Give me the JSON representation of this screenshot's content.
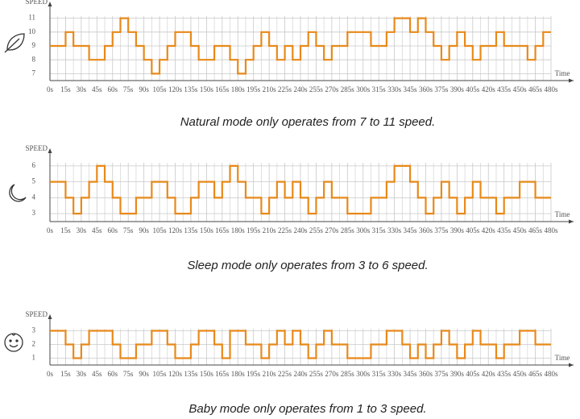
{
  "chart_data": [
    {
      "type": "step",
      "title": "Natural mode only operates from 7 to 11 speed.",
      "y_label": "SPEED",
      "x_label": "Time",
      "color": "#e8891a",
      "grid": true,
      "xlim": [
        0,
        480
      ],
      "ylim": [
        6.5,
        11.5
      ],
      "yticks": [
        7,
        8,
        9,
        10,
        11
      ],
      "xticks": [
        {
          "value": 0,
          "label": "0s"
        },
        {
          "value": 15,
          "label": "15s"
        },
        {
          "value": 30,
          "label": "30s"
        },
        {
          "value": 45,
          "label": "45s"
        },
        {
          "value": 60,
          "label": "60s"
        },
        {
          "value": 75,
          "label": "75s"
        },
        {
          "value": 90,
          "label": "90s"
        },
        {
          "value": 105,
          "label": "105s"
        },
        {
          "value": 120,
          "label": "120s"
        },
        {
          "value": 135,
          "label": "135s"
        },
        {
          "value": 150,
          "label": "150s"
        },
        {
          "value": 165,
          "label": "165s"
        },
        {
          "value": 180,
          "label": "180s"
        },
        {
          "value": 195,
          "label": "195s"
        },
        {
          "value": 210,
          "label": "210s"
        },
        {
          "value": 225,
          "label": "225s"
        },
        {
          "value": 240,
          "label": "240s"
        },
        {
          "value": 255,
          "label": "255s"
        },
        {
          "value": 270,
          "label": "270s"
        },
        {
          "value": 285,
          "label": "285s"
        },
        {
          "value": 300,
          "label": "300s"
        },
        {
          "value": 315,
          "label": "315s"
        },
        {
          "value": 330,
          "label": "330s"
        },
        {
          "value": 345,
          "label": "345s"
        },
        {
          "value": 360,
          "label": "360s"
        },
        {
          "value": 375,
          "label": "375s"
        },
        {
          "value": 390,
          "label": "390s"
        },
        {
          "value": 405,
          "label": "405s"
        },
        {
          "value": 420,
          "label": "420s"
        },
        {
          "value": 435,
          "label": "435s"
        },
        {
          "value": 450,
          "label": "450s"
        },
        {
          "value": 465,
          "label": "465s"
        },
        {
          "value": 480,
          "label": "480s"
        }
      ],
      "x": [
        0,
        15,
        22.5,
        37.5,
        52.5,
        60,
        67.5,
        75,
        82.5,
        90,
        97.5,
        105,
        112.5,
        120,
        135,
        142.5,
        157.5,
        172.5,
        180,
        187.5,
        195,
        202.5,
        210,
        217.5,
        225,
        232.5,
        240,
        247.5,
        255,
        262.5,
        270,
        285,
        307.5,
        322.5,
        330,
        345,
        352.5,
        360,
        367.5,
        375,
        382.5,
        390,
        397.5,
        405,
        412.5,
        427.5,
        435,
        457.5,
        465,
        472.5
      ],
      "values": [
        9,
        10,
        9,
        8,
        9,
        10,
        11,
        10,
        9,
        8,
        7,
        8,
        9,
        10,
        9,
        8,
        9,
        8,
        7,
        8,
        9,
        10,
        9,
        8,
        9,
        8,
        9,
        10,
        9,
        8,
        9,
        10,
        9,
        10,
        11,
        10,
        11,
        10,
        9,
        8,
        9,
        10,
        9,
        8,
        9,
        10,
        9,
        8,
        9,
        10
      ]
    },
    {
      "type": "step",
      "title": "Sleep mode only operates from 3 to 6 speed.",
      "y_label": "SPEED",
      "x_label": "Time",
      "color": "#e8891a",
      "grid": true,
      "xlim": [
        0,
        480
      ],
      "ylim": [
        2.5,
        6.5
      ],
      "yticks": [
        3,
        4,
        5,
        6
      ],
      "xticks": [
        {
          "value": 0,
          "label": "0s"
        },
        {
          "value": 15,
          "label": "15s"
        },
        {
          "value": 30,
          "label": "30s"
        },
        {
          "value": 45,
          "label": "45s"
        },
        {
          "value": 60,
          "label": "60s"
        },
        {
          "value": 75,
          "label": "75s"
        },
        {
          "value": 90,
          "label": "90s"
        },
        {
          "value": 105,
          "label": "105s"
        },
        {
          "value": 120,
          "label": "120s"
        },
        {
          "value": 135,
          "label": "135s"
        },
        {
          "value": 150,
          "label": "150s"
        },
        {
          "value": 165,
          "label": "165s"
        },
        {
          "value": 180,
          "label": "180s"
        },
        {
          "value": 195,
          "label": "195s"
        },
        {
          "value": 210,
          "label": "210s"
        },
        {
          "value": 225,
          "label": "225s"
        },
        {
          "value": 240,
          "label": "240s"
        },
        {
          "value": 255,
          "label": "255s"
        },
        {
          "value": 270,
          "label": "270s"
        },
        {
          "value": 285,
          "label": "285s"
        },
        {
          "value": 300,
          "label": "300s"
        },
        {
          "value": 315,
          "label": "315s"
        },
        {
          "value": 330,
          "label": "330s"
        },
        {
          "value": 345,
          "label": "345s"
        },
        {
          "value": 360,
          "label": "360s"
        },
        {
          "value": 375,
          "label": "375s"
        },
        {
          "value": 390,
          "label": "390s"
        },
        {
          "value": 405,
          "label": "405s"
        },
        {
          "value": 420,
          "label": "420s"
        },
        {
          "value": 435,
          "label": "435s"
        },
        {
          "value": 450,
          "label": "450s"
        },
        {
          "value": 465,
          "label": "465s"
        },
        {
          "value": 480,
          "label": "480s"
        }
      ],
      "x": [
        0,
        15,
        22.5,
        30,
        37.5,
        45,
        52.5,
        60,
        67.5,
        82.5,
        97.5,
        112.5,
        120,
        135,
        142.5,
        157.5,
        165,
        172.5,
        180,
        187.5,
        202.5,
        210,
        217.5,
        225,
        232.5,
        240,
        247.5,
        255,
        262.5,
        270,
        285,
        307.5,
        322.5,
        330,
        345,
        352.5,
        360,
        367.5,
        375,
        382.5,
        390,
        397.5,
        405,
        412.5,
        427.5,
        435,
        450,
        465
      ],
      "values": [
        5,
        4,
        3,
        4,
        5,
        6,
        5,
        4,
        3,
        4,
        5,
        4,
        3,
        4,
        5,
        4,
        5,
        6,
        5,
        4,
        3,
        4,
        5,
        4,
        5,
        4,
        3,
        4,
        5,
        4,
        3,
        4,
        5,
        6,
        5,
        4,
        3,
        4,
        5,
        4,
        3,
        4,
        5,
        4,
        3,
        4,
        5,
        4
      ]
    },
    {
      "type": "step",
      "title": "Baby mode only operates from 1 to 3 speed.",
      "y_label": "SPEED",
      "x_label": "Time",
      "color": "#e8891a",
      "grid": true,
      "xlim": [
        0,
        480
      ],
      "ylim": [
        0.5,
        3.5
      ],
      "yticks": [
        1,
        2,
        3
      ],
      "xticks": [
        {
          "value": 0,
          "label": "0s"
        },
        {
          "value": 15,
          "label": "15s"
        },
        {
          "value": 30,
          "label": "30s"
        },
        {
          "value": 45,
          "label": "45s"
        },
        {
          "value": 60,
          "label": "60s"
        },
        {
          "value": 75,
          "label": "75s"
        },
        {
          "value": 90,
          "label": "90s"
        },
        {
          "value": 105,
          "label": "105s"
        },
        {
          "value": 120,
          "label": "120s"
        },
        {
          "value": 135,
          "label": "135s"
        },
        {
          "value": 150,
          "label": "150s"
        },
        {
          "value": 165,
          "label": "165s"
        },
        {
          "value": 180,
          "label": "180s"
        },
        {
          "value": 195,
          "label": "195s"
        },
        {
          "value": 210,
          "label": "210s"
        },
        {
          "value": 225,
          "label": "225s"
        },
        {
          "value": 240,
          "label": "240s"
        },
        {
          "value": 255,
          "label": "255s"
        },
        {
          "value": 270,
          "label": "270s"
        },
        {
          "value": 285,
          "label": "285s"
        },
        {
          "value": 300,
          "label": "300s"
        },
        {
          "value": 315,
          "label": "315s"
        },
        {
          "value": 330,
          "label": "330s"
        },
        {
          "value": 345,
          "label": "345s"
        },
        {
          "value": 360,
          "label": "360s"
        },
        {
          "value": 375,
          "label": "375s"
        },
        {
          "value": 390,
          "label": "390s"
        },
        {
          "value": 405,
          "label": "405s"
        },
        {
          "value": 420,
          "label": "420s"
        },
        {
          "value": 435,
          "label": "435s"
        },
        {
          "value": 450,
          "label": "450s"
        },
        {
          "value": 465,
          "label": "465s"
        },
        {
          "value": 480,
          "label": "480s"
        }
      ],
      "x": [
        0,
        15,
        22.5,
        30,
        37.5,
        60,
        67.5,
        82.5,
        97.5,
        112.5,
        120,
        135,
        142.5,
        157.5,
        165,
        172.5,
        187.5,
        202.5,
        210,
        217.5,
        225,
        232.5,
        240,
        247.5,
        255,
        262.5,
        270,
        285,
        307.5,
        322.5,
        337.5,
        345,
        352.5,
        360,
        367.5,
        375,
        382.5,
        390,
        397.5,
        405,
        412.5,
        427.5,
        435,
        450,
        465
      ],
      "values": [
        3,
        2,
        1,
        2,
        3,
        2,
        1,
        2,
        3,
        2,
        1,
        2,
        3,
        2,
        1,
        3,
        2,
        1,
        2,
        3,
        2,
        3,
        2,
        1,
        2,
        3,
        2,
        1,
        2,
        3,
        2,
        1,
        2,
        1,
        2,
        3,
        2,
        1,
        2,
        3,
        2,
        1,
        2,
        3,
        2
      ]
    }
  ]
}
